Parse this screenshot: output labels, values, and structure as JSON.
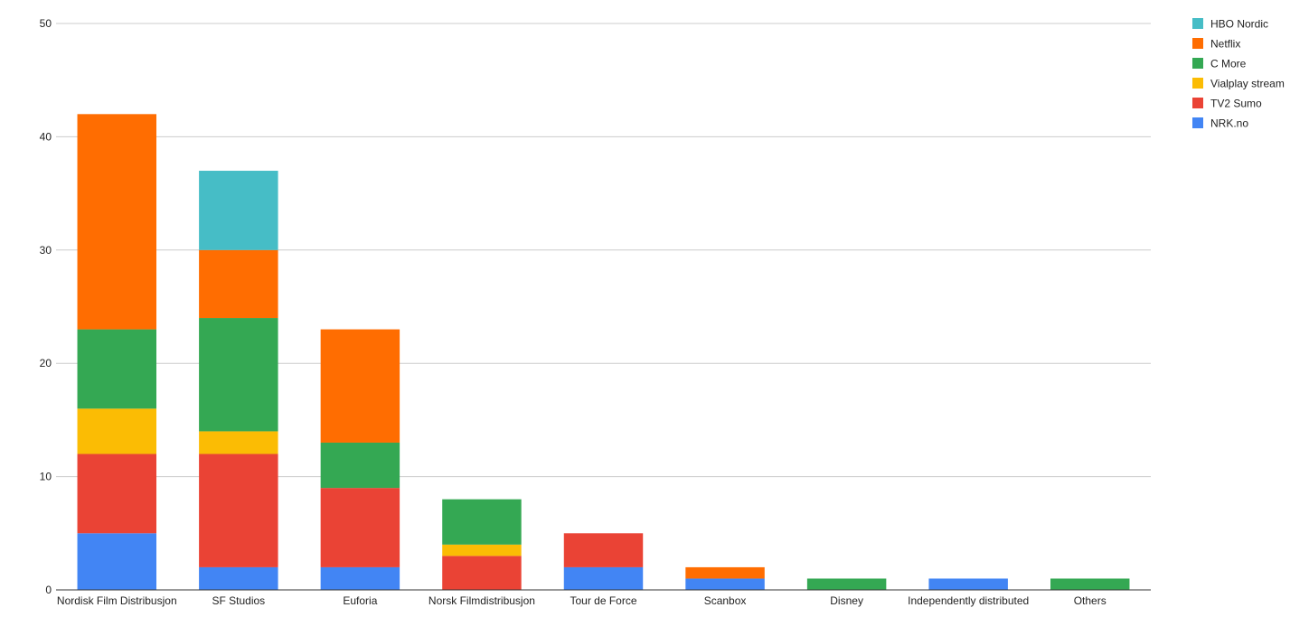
{
  "chart_data": {
    "type": "bar",
    "stacked": true,
    "categories": [
      "Nordisk Film Distribusjon",
      "SF Studios",
      "Euforia",
      "Norsk Filmdistribusjon",
      "Tour de Force",
      "Scanbox",
      "Disney",
      "Independently distributed",
      "Others"
    ],
    "series": [
      {
        "name": "NRK.no",
        "color": "#4285f4",
        "values": [
          5,
          2,
          2,
          0,
          2,
          1,
          0,
          1,
          0
        ]
      },
      {
        "name": "TV2 Sumo",
        "color": "#ea4335",
        "values": [
          7,
          10,
          7,
          3,
          3,
          0,
          0,
          0,
          0
        ]
      },
      {
        "name": "Vialplay stream",
        "color": "#fbbc04",
        "values": [
          4,
          2,
          0,
          1,
          0,
          0,
          0,
          0,
          0
        ]
      },
      {
        "name": "C More",
        "color": "#34a853",
        "values": [
          7,
          10,
          4,
          4,
          0,
          0,
          1,
          0,
          1
        ]
      },
      {
        "name": "Netflix",
        "color": "#ff6d01",
        "values": [
          19,
          6,
          10,
          0,
          0,
          1,
          0,
          0,
          0
        ]
      },
      {
        "name": "HBO Nordic",
        "color": "#46bdc6",
        "values": [
          0,
          7,
          0,
          0,
          0,
          0,
          0,
          0,
          0
        ]
      }
    ],
    "legend_order": [
      "HBO Nordic",
      "Netflix",
      "C More",
      "Vialplay stream",
      "TV2 Sumo",
      "NRK.no"
    ],
    "ylim": [
      0,
      50
    ],
    "yticks": [
      0,
      10,
      20,
      30,
      40,
      50
    ],
    "grid": true,
    "legend_position": "right",
    "title": "",
    "xlabel": "",
    "ylabel": ""
  }
}
